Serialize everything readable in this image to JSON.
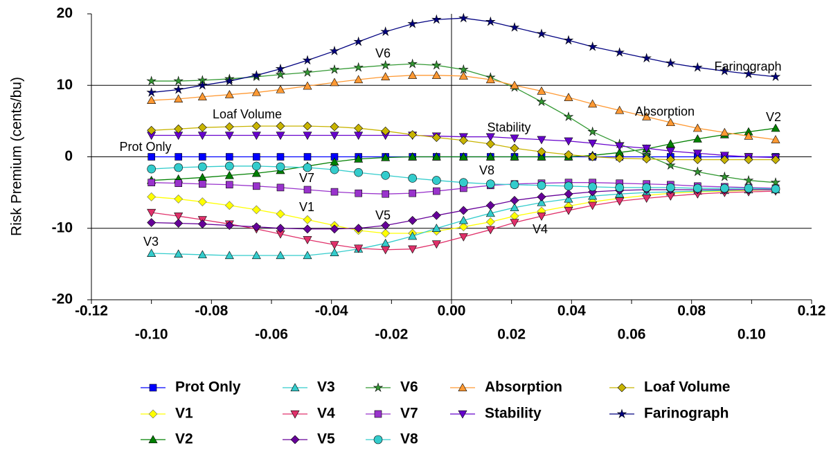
{
  "chart_data": {
    "type": "line",
    "y_label": "Risk Premium (cents/bu)",
    "xlim": [
      -0.12,
      0.12
    ],
    "ylim": [
      -20,
      20
    ],
    "yticks": [
      -20,
      -10,
      0,
      10,
      20
    ],
    "xticks": [
      -0.12,
      {
        "value": -0.1,
        "label": "-0.10"
      },
      -0.08,
      -0.06,
      -0.04,
      -0.02,
      {
        "value": 0,
        "label": "0.00"
      },
      0.02,
      0.04,
      0.06,
      0.08,
      {
        "value": 0.1,
        "label": "0.10"
      },
      0.12
    ],
    "grid": true,
    "x": [
      -0.1,
      -0.091,
      -0.083,
      -0.074,
      -0.065,
      -0.057,
      -0.048,
      -0.039,
      -0.031,
      -0.022,
      -0.013,
      -0.005,
      0.004,
      0.013,
      0.021,
      0.03,
      0.039,
      0.047,
      0.056,
      0.065,
      0.073,
      0.082,
      0.091,
      0.099,
      0.108
    ],
    "series": [
      {
        "name": "Prot Only",
        "color": "#0000ff",
        "marker": "square",
        "values": [
          0,
          0,
          0,
          0,
          0,
          0,
          0,
          0,
          0,
          0,
          0,
          0,
          0,
          0,
          0,
          0,
          0,
          0,
          0,
          0,
          0,
          0,
          0,
          0,
          0
        ]
      },
      {
        "name": "V1",
        "color": "#ffff00",
        "marker": "diamond",
        "values": [
          -5.6,
          -5.9,
          -6.3,
          -6.8,
          -7.4,
          -8.0,
          -8.8,
          -9.6,
          -10.3,
          -10.7,
          -10.7,
          -10.4,
          -9.8,
          -9.1,
          -8.3,
          -7.6,
          -6.9,
          -6.3,
          -5.8,
          -5.4,
          -5.1,
          -4.9,
          -4.8,
          -4.7,
          -4.6
        ]
      },
      {
        "name": "V2",
        "color": "#008000",
        "marker": "triangle",
        "values": [
          -3.3,
          -3.1,
          -2.9,
          -2.6,
          -2.3,
          -1.9,
          -1.3,
          -0.7,
          -0.3,
          -0.1,
          0,
          0,
          0,
          0,
          0,
          0,
          0,
          0.2,
          0.6,
          1.1,
          1.8,
          2.5,
          3.1,
          3.5,
          4.0
        ]
      },
      {
        "name": "V3",
        "color": "#33cccc",
        "marker": "triangle",
        "values": [
          -13.5,
          -13.6,
          -13.7,
          -13.8,
          -13.8,
          -13.8,
          -13.8,
          -13.4,
          -12.9,
          -12.1,
          -11.1,
          -10.0,
          -8.9,
          -7.9,
          -7.1,
          -6.4,
          -5.9,
          -5.5,
          -5.2,
          -5.0,
          -4.9,
          -4.8,
          -4.7,
          -4.6,
          -4.6
        ]
      },
      {
        "name": "V4",
        "color": "#e0306a",
        "marker": "triangle-down",
        "values": [
          -7.8,
          -8.3,
          -8.8,
          -9.4,
          -10.1,
          -10.8,
          -11.6,
          -12.3,
          -12.8,
          -13.0,
          -12.9,
          -12.2,
          -11.2,
          -10.2,
          -9.2,
          -8.3,
          -7.5,
          -6.8,
          -6.2,
          -5.8,
          -5.5,
          -5.2,
          -5.0,
          -4.9,
          -4.8
        ]
      },
      {
        "name": "V5",
        "color": "#660099",
        "marker": "diamond",
        "values": [
          -9.2,
          -9.3,
          -9.4,
          -9.6,
          -9.8,
          -10.0,
          -10.1,
          -10.1,
          -10.0,
          -9.6,
          -8.9,
          -8.2,
          -7.5,
          -6.8,
          -6.1,
          -5.6,
          -5.2,
          -4.9,
          -4.7,
          -4.6,
          -4.6,
          -4.6,
          -4.6,
          -4.6,
          -4.6
        ]
      },
      {
        "name": "V6",
        "color": "#339933",
        "marker": "star",
        "values": [
          10.6,
          10.6,
          10.7,
          10.9,
          11.2,
          11.5,
          11.8,
          12.2,
          12.5,
          12.8,
          13.0,
          12.8,
          12.2,
          11.1,
          9.7,
          7.7,
          5.6,
          3.5,
          1.8,
          0.2,
          -1.2,
          -2.1,
          -2.8,
          -3.3,
          -3.6
        ]
      },
      {
        "name": "V7",
        "color": "#9933cc",
        "marker": "square",
        "values": [
          -3.6,
          -3.7,
          -3.8,
          -3.9,
          -4.1,
          -4.3,
          -4.6,
          -4.9,
          -5.1,
          -5.2,
          -5.1,
          -4.8,
          -4.4,
          -4.0,
          -3.8,
          -3.7,
          -3.6,
          -3.6,
          -3.7,
          -3.8,
          -3.9,
          -4.1,
          -4.2,
          -4.3,
          -4.4
        ]
      },
      {
        "name": "V8",
        "color": "#33cccc",
        "marker": "circle",
        "values": [
          -1.7,
          -1.5,
          -1.4,
          -1.3,
          -1.3,
          -1.4,
          -1.5,
          -1.8,
          -2.2,
          -2.6,
          -3.0,
          -3.3,
          -3.6,
          -3.8,
          -3.9,
          -4.0,
          -4.1,
          -4.2,
          -4.3,
          -4.3,
          -4.3,
          -4.4,
          -4.4,
          -4.4,
          -4.5
        ]
      },
      {
        "name": "Absorption",
        "color": "#ff9933",
        "marker": "triangle",
        "values": [
          7.9,
          8.1,
          8.4,
          8.7,
          9.0,
          9.4,
          9.9,
          10.4,
          10.8,
          11.2,
          11.4,
          11.4,
          11.3,
          10.8,
          10.0,
          9.2,
          8.3,
          7.4,
          6.5,
          5.6,
          4.8,
          4.0,
          3.4,
          2.9,
          2.4
        ]
      },
      {
        "name": "Stability",
        "color": "#6600cc",
        "marker": "triangle-down",
        "values": [
          3.0,
          3.0,
          3.0,
          3.0,
          3.0,
          3.0,
          3.0,
          3.0,
          3.0,
          3.0,
          3.0,
          2.9,
          2.8,
          2.8,
          2.6,
          2.4,
          2.2,
          1.9,
          1.5,
          1.2,
          0.8,
          0.5,
          0.2,
          0.0,
          -0.1
        ]
      },
      {
        "name": "Loaf Volume",
        "color": "#c8b400",
        "marker": "diamond",
        "values": [
          3.7,
          3.9,
          4.1,
          4.2,
          4.3,
          4.3,
          4.3,
          4.2,
          4.0,
          3.6,
          3.1,
          2.7,
          2.3,
          1.8,
          1.2,
          0.7,
          0.3,
          0.0,
          -0.2,
          -0.3,
          -0.4,
          -0.4,
          -0.4,
          -0.4,
          -0.4
        ]
      },
      {
        "name": "Farinograph",
        "color": "#000080",
        "marker": "star",
        "values": [
          9.0,
          9.4,
          10.0,
          10.6,
          11.4,
          12.3,
          13.5,
          14.8,
          16.1,
          17.5,
          18.6,
          19.2,
          19.4,
          18.9,
          18.1,
          17.2,
          16.3,
          15.4,
          14.6,
          13.8,
          13.1,
          12.5,
          12.0,
          11.6,
          11.2
        ]
      }
    ],
    "annotations": [
      "V6",
      "Farinograph",
      "Loaf Volume",
      "Absorption",
      "V2",
      "Stability",
      "Prot Only",
      "V8",
      "V7",
      "V1",
      "V5",
      "V4",
      "V3"
    ]
  }
}
